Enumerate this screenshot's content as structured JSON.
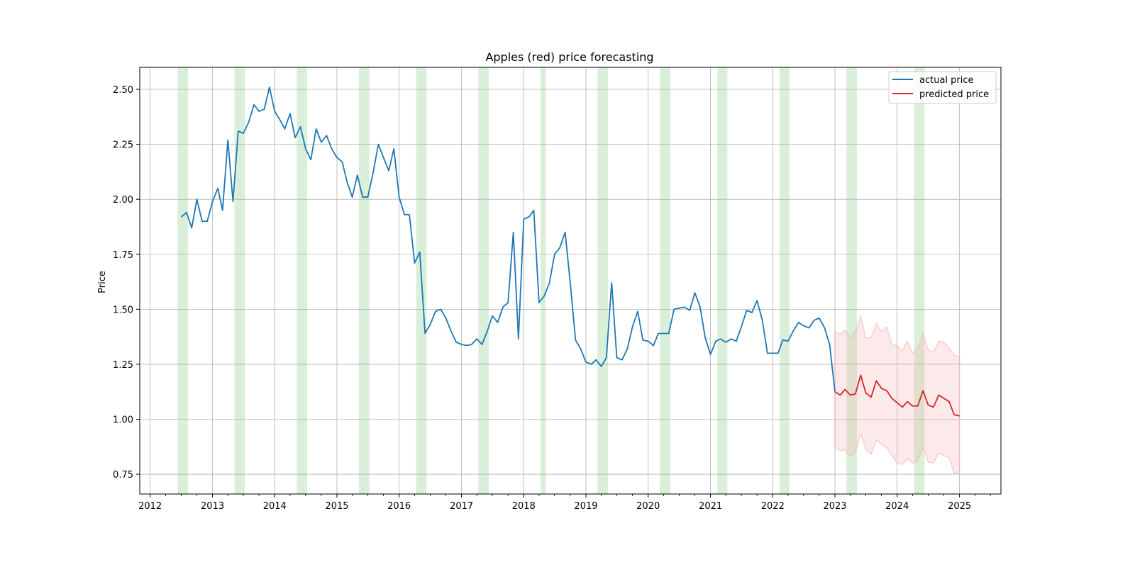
{
  "chart_data": {
    "type": "line",
    "title": "Apples (red) price forecasting",
    "xlabel": "",
    "ylabel": "Price",
    "xlim": [
      "2011-11-01",
      "2025-09-01"
    ],
    "ylim": [
      0.66,
      2.6
    ],
    "x_ticks": [
      "2012",
      "2013",
      "2014",
      "2015",
      "2016",
      "2017",
      "2018",
      "2019",
      "2020",
      "2021",
      "2022",
      "2023",
      "2024",
      "2025"
    ],
    "y_ticks": [
      "0.75",
      "1.00",
      "1.25",
      "1.50",
      "1.75",
      "2.00",
      "2.25",
      "2.50"
    ],
    "grid": true,
    "legend_position": "top-right",
    "colors": {
      "actual": "#1f77b4",
      "predicted": "#d62728",
      "band": "#f4b6b6",
      "highlight": "#c9e8c9"
    },
    "series": [
      {
        "name": "actual price",
        "points": [
          [
            "2012-07",
            1.92
          ],
          [
            "2012-08",
            1.94
          ],
          [
            "2012-09",
            1.87
          ],
          [
            "2012-10",
            2.0
          ],
          [
            "2012-11",
            1.9
          ],
          [
            "2012-12",
            1.9
          ],
          [
            "2013-01",
            1.99
          ],
          [
            "2013-02",
            2.05
          ],
          [
            "2013-03",
            1.95
          ],
          [
            "2013-04",
            2.27
          ],
          [
            "2013-05",
            1.99
          ],
          [
            "2013-06",
            2.31
          ],
          [
            "2013-07",
            2.3
          ],
          [
            "2013-08",
            2.35
          ],
          [
            "2013-09",
            2.43
          ],
          [
            "2013-10",
            2.4
          ],
          [
            "2013-11",
            2.41
          ],
          [
            "2013-12",
            2.51
          ],
          [
            "2014-01",
            2.4
          ],
          [
            "2014-02",
            2.36
          ],
          [
            "2014-03",
            2.32
          ],
          [
            "2014-04",
            2.39
          ],
          [
            "2014-05",
            2.28
          ],
          [
            "2014-06",
            2.33
          ],
          [
            "2014-07",
            2.23
          ],
          [
            "2014-08",
            2.18
          ],
          [
            "2014-09",
            2.32
          ],
          [
            "2014-10",
            2.26
          ],
          [
            "2014-11",
            2.29
          ],
          [
            "2014-12",
            2.23
          ],
          [
            "2015-01",
            2.19
          ],
          [
            "2015-02",
            2.17
          ],
          [
            "2015-03",
            2.08
          ],
          [
            "2015-04",
            2.01
          ],
          [
            "2015-05",
            2.11
          ],
          [
            "2015-06",
            2.01
          ],
          [
            "2015-07",
            2.01
          ],
          [
            "2015-08",
            2.12
          ],
          [
            "2015-09",
            2.25
          ],
          [
            "2015-10",
            2.19
          ],
          [
            "2015-11",
            2.13
          ],
          [
            "2015-12",
            2.23
          ],
          [
            "2016-01",
            2.01
          ],
          [
            "2016-02",
            1.93
          ],
          [
            "2016-03",
            1.93
          ],
          [
            "2016-04",
            1.71
          ],
          [
            "2016-05",
            1.76
          ],
          [
            "2016-06",
            1.39
          ],
          [
            "2016-07",
            1.43
          ],
          [
            "2016-08",
            1.49
          ],
          [
            "2016-09",
            1.5
          ],
          [
            "2016-10",
            1.46
          ],
          [
            "2016-11",
            1.4
          ],
          [
            "2016-12",
            1.35
          ],
          [
            "2017-01",
            1.34
          ],
          [
            "2017-02",
            1.335
          ],
          [
            "2017-03",
            1.34
          ],
          [
            "2017-04",
            1.365
          ],
          [
            "2017-05",
            1.34
          ],
          [
            "2017-06",
            1.4
          ],
          [
            "2017-07",
            1.47
          ],
          [
            "2017-08",
            1.44
          ],
          [
            "2017-09",
            1.51
          ],
          [
            "2017-10",
            1.53
          ],
          [
            "2017-11",
            1.85
          ],
          [
            "2017-12",
            1.365
          ],
          [
            "2018-01",
            1.91
          ],
          [
            "2018-02",
            1.92
          ],
          [
            "2018-03",
            1.95
          ],
          [
            "2018-04",
            1.53
          ],
          [
            "2018-05",
            1.56
          ],
          [
            "2018-06",
            1.62
          ],
          [
            "2018-07",
            1.75
          ],
          [
            "2018-08",
            1.78
          ],
          [
            "2018-09",
            1.85
          ],
          [
            "2018-10",
            1.62
          ],
          [
            "2018-11",
            1.36
          ],
          [
            "2018-12",
            1.32
          ],
          [
            "2019-01",
            1.26
          ],
          [
            "2019-02",
            1.25
          ],
          [
            "2019-03",
            1.27
          ],
          [
            "2019-04",
            1.24
          ],
          [
            "2019-05",
            1.28
          ],
          [
            "2019-06",
            1.62
          ],
          [
            "2019-07",
            1.28
          ],
          [
            "2019-08",
            1.27
          ],
          [
            "2019-09",
            1.32
          ],
          [
            "2019-10",
            1.42
          ],
          [
            "2019-11",
            1.49
          ],
          [
            "2019-12",
            1.36
          ],
          [
            "2020-01",
            1.355
          ],
          [
            "2020-02",
            1.335
          ],
          [
            "2020-03",
            1.39
          ],
          [
            "2020-04",
            1.39
          ],
          [
            "2020-05",
            1.39
          ],
          [
            "2020-06",
            1.5
          ],
          [
            "2020-07",
            1.505
          ],
          [
            "2020-08",
            1.51
          ],
          [
            "2020-09",
            1.495
          ],
          [
            "2020-10",
            1.575
          ],
          [
            "2020-11",
            1.51
          ],
          [
            "2020-12",
            1.37
          ],
          [
            "2021-01",
            1.295
          ],
          [
            "2021-02",
            1.355
          ],
          [
            "2021-03",
            1.365
          ],
          [
            "2021-04",
            1.35
          ],
          [
            "2021-05",
            1.365
          ],
          [
            "2021-06",
            1.355
          ],
          [
            "2021-07",
            1.42
          ],
          [
            "2021-08",
            1.495
          ],
          [
            "2021-09",
            1.485
          ],
          [
            "2021-10",
            1.54
          ],
          [
            "2021-11",
            1.45
          ],
          [
            "2021-12",
            1.3
          ],
          [
            "2022-01",
            1.3
          ],
          [
            "2022-02",
            1.3
          ],
          [
            "2022-03",
            1.36
          ],
          [
            "2022-04",
            1.355
          ],
          [
            "2022-05",
            1.4
          ],
          [
            "2022-06",
            1.44
          ],
          [
            "2022-07",
            1.425
          ],
          [
            "2022-08",
            1.415
          ],
          [
            "2022-09",
            1.45
          ],
          [
            "2022-10",
            1.46
          ],
          [
            "2022-11",
            1.415
          ],
          [
            "2022-12",
            1.34
          ],
          [
            "2023-01",
            1.125
          ]
        ]
      },
      {
        "name": "predicted price",
        "points": [
          [
            "2023-01",
            1.125
          ],
          [
            "2023-02",
            1.11
          ],
          [
            "2023-03",
            1.135
          ],
          [
            "2023-04",
            1.11
          ],
          [
            "2023-05",
            1.115
          ],
          [
            "2023-06",
            1.2
          ],
          [
            "2023-07",
            1.12
          ],
          [
            "2023-08",
            1.1
          ],
          [
            "2023-09",
            1.175
          ],
          [
            "2023-10",
            1.14
          ],
          [
            "2023-11",
            1.13
          ],
          [
            "2023-12",
            1.095
          ],
          [
            "2024-01",
            1.075
          ],
          [
            "2024-02",
            1.055
          ],
          [
            "2024-03",
            1.08
          ],
          [
            "2024-04",
            1.06
          ],
          [
            "2024-05",
            1.06
          ],
          [
            "2024-06",
            1.13
          ],
          [
            "2024-07",
            1.065
          ],
          [
            "2024-08",
            1.055
          ],
          [
            "2024-09",
            1.11
          ],
          [
            "2024-10",
            1.095
          ],
          [
            "2024-11",
            1.08
          ],
          [
            "2024-12",
            1.02
          ],
          [
            "2025-01",
            1.015
          ]
        ]
      }
    ],
    "confidence_band": {
      "upper": [
        1.4,
        1.385,
        1.405,
        1.37,
        1.395,
        1.47,
        1.37,
        1.37,
        1.435,
        1.4,
        1.42,
        1.34,
        1.335,
        1.31,
        1.355,
        1.3,
        1.32,
        1.39,
        1.315,
        1.305,
        1.355,
        1.35,
        1.325,
        1.29,
        1.285
      ],
      "lower": [
        0.875,
        0.855,
        0.86,
        0.83,
        0.85,
        0.935,
        0.865,
        0.84,
        0.905,
        0.885,
        0.87,
        0.835,
        0.8,
        0.795,
        0.82,
        0.8,
        0.81,
        0.875,
        0.805,
        0.8,
        0.845,
        0.835,
        0.825,
        0.755,
        0.75
      ]
    },
    "highlight_spans": [
      [
        "2012-06-10",
        "2012-08-10"
      ],
      [
        "2013-05-10",
        "2013-07-10"
      ],
      [
        "2014-05-10",
        "2014-07-10"
      ],
      [
        "2015-05-10",
        "2015-07-10"
      ],
      [
        "2016-04-10",
        "2016-06-10"
      ],
      [
        "2017-04-10",
        "2017-06-10"
      ],
      [
        "2018-04-10",
        "2018-05-10"
      ],
      [
        "2019-03-10",
        "2019-05-10"
      ],
      [
        "2020-03-10",
        "2020-05-10"
      ],
      [
        "2021-02-10",
        "2021-04-10"
      ],
      [
        "2022-02-10",
        "2022-04-10"
      ],
      [
        "2023-03-10",
        "2023-05-10"
      ],
      [
        "2024-04-10",
        "2024-06-10"
      ]
    ]
  }
}
